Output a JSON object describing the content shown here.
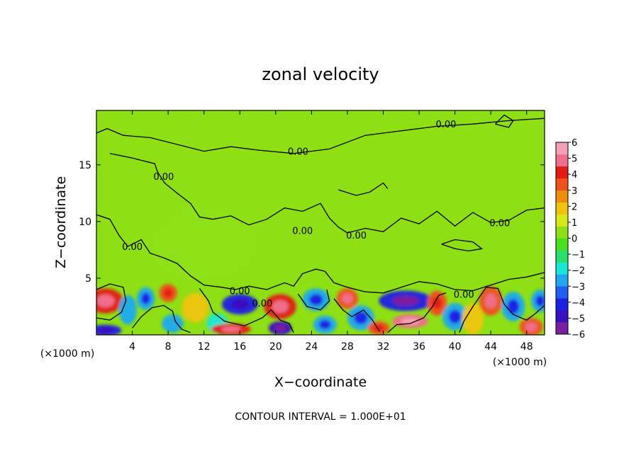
{
  "chart_data": {
    "type": "heatmap",
    "title": "zonal velocity",
    "xlabel": "X−coordinate",
    "ylabel": "Z−coordinate",
    "x_unit_left": "(×1000 m)",
    "x_unit_right": "(×1000 m)",
    "xlim": [
      0,
      50
    ],
    "ylim": [
      0,
      19.8
    ],
    "x_ticks": [
      4,
      8,
      12,
      16,
      20,
      24,
      28,
      32,
      36,
      40,
      44,
      48
    ],
    "y_ticks": [
      5,
      10,
      15
    ],
    "contour_interval_text": "CONTOUR INTERVAL = 1.000E+01",
    "contour_label": "0.00",
    "contour_label_positions": [
      [
        39,
        18.6
      ],
      [
        22.5,
        16.2
      ],
      [
        7.5,
        14
      ],
      [
        4,
        7.8
      ],
      [
        23,
        9.2
      ],
      [
        29,
        8.8
      ],
      [
        45,
        9.9
      ],
      [
        16,
        3.9
      ],
      [
        18.5,
        2.8
      ],
      [
        41,
        3.6
      ]
    ],
    "colorbar": {
      "min": -6,
      "max": 6,
      "tick_labels": [
        "6",
        "5",
        "4",
        "3",
        "2",
        "1",
        "0",
        "−1",
        "−2",
        "−3",
        "−4",
        "−5",
        "−6"
      ],
      "colors": [
        "#7a1fa2",
        "#3a0fc0",
        "#1a20e6",
        "#1e5ef0",
        "#1ea8f0",
        "#17e8d6",
        "#26e06a",
        "#46e01e",
        "#8ee014",
        "#d8e814",
        "#f0c40c",
        "#f08c0c",
        "#f0501a",
        "#e41a14",
        "#f06e8c",
        "#f4a0b4"
      ]
    },
    "background_value": 0.1,
    "blobs": [
      {
        "x": 1,
        "z": 3,
        "rx": 2.0,
        "rz": 1.1,
        "v": 4
      },
      {
        "x": 1,
        "z": 0.4,
        "rx": 1.8,
        "rz": 0.5,
        "v": -4
      },
      {
        "x": 3.5,
        "z": 2.2,
        "rx": 1.0,
        "rz": 1.3,
        "v": -2.5
      },
      {
        "x": 5.5,
        "z": 3.2,
        "rx": 1.0,
        "rz": 1.0,
        "v": -3
      },
      {
        "x": 8,
        "z": 3.7,
        "rx": 1.0,
        "rz": 0.8,
        "v": 3
      },
      {
        "x": 8.5,
        "z": 1.0,
        "rx": 1.2,
        "rz": 0.8,
        "v": -2.5
      },
      {
        "x": 11,
        "z": 2.4,
        "rx": 1.5,
        "rz": 1.3,
        "v": 2
      },
      {
        "x": 13.5,
        "z": 1.0,
        "rx": 1.2,
        "rz": 0.9,
        "v": -2
      },
      {
        "x": 16,
        "z": 2.7,
        "rx": 2.0,
        "rz": 0.9,
        "v": -4
      },
      {
        "x": 15,
        "z": 0.5,
        "rx": 2.2,
        "rz": 0.5,
        "v": 4
      },
      {
        "x": 20.5,
        "z": 2.5,
        "rx": 1.8,
        "rz": 1.1,
        "v": 4
      },
      {
        "x": 20.5,
        "z": 0.6,
        "rx": 1.3,
        "rz": 0.6,
        "v": -5
      },
      {
        "x": 24.5,
        "z": 3.1,
        "rx": 1.5,
        "rz": 1.0,
        "v": -3
      },
      {
        "x": 25.5,
        "z": 0.9,
        "rx": 1.3,
        "rz": 0.8,
        "v": -3
      },
      {
        "x": 28,
        "z": 3.2,
        "rx": 1.2,
        "rz": 0.9,
        "v": 3.5
      },
      {
        "x": 29.5,
        "z": 1.5,
        "rx": 1.5,
        "rz": 1.1,
        "v": -3
      },
      {
        "x": 31.5,
        "z": 0.6,
        "rx": 1.2,
        "rz": 0.6,
        "v": 3
      },
      {
        "x": 34.5,
        "z": 3.0,
        "rx": 3.0,
        "rz": 0.9,
        "v": -4.5
      },
      {
        "x": 35,
        "z": 1.2,
        "rx": 2.0,
        "rz": 0.6,
        "v": 4.5
      },
      {
        "x": 38,
        "z": 2.8,
        "rx": 1.1,
        "rz": 1.1,
        "v": 3
      },
      {
        "x": 40,
        "z": 1.6,
        "rx": 1.4,
        "rz": 1.2,
        "v": -3
      },
      {
        "x": 42,
        "z": 1.4,
        "rx": 1.2,
        "rz": 1.4,
        "v": 2
      },
      {
        "x": 44,
        "z": 3.0,
        "rx": 1.3,
        "rz": 1.3,
        "v": 3.5
      },
      {
        "x": 46.5,
        "z": 2.5,
        "rx": 1.3,
        "rz": 1.3,
        "v": -3
      },
      {
        "x": 48.5,
        "z": 0.7,
        "rx": 1.3,
        "rz": 0.8,
        "v": 3.5
      },
      {
        "x": 49.5,
        "z": 3.0,
        "rx": 1.0,
        "rz": 1.0,
        "v": -3
      },
      {
        "x": 12,
        "z": 8,
        "rx": 6.0,
        "rz": 3.5,
        "v": 0.5
      }
    ],
    "contours": [
      [
        [
          0,
          17.8
        ],
        [
          1.2,
          18.2
        ],
        [
          3,
          17.6
        ],
        [
          6,
          17.4
        ],
        [
          9,
          16.8
        ],
        [
          12,
          16.2
        ],
        [
          15,
          16.6
        ],
        [
          18,
          16.3
        ],
        [
          22,
          16.0
        ],
        [
          26,
          16.4
        ],
        [
          30,
          17.6
        ],
        [
          34,
          18.0
        ],
        [
          38,
          18.4
        ],
        [
          42,
          18.6
        ],
        [
          46,
          18.9
        ],
        [
          50,
          19.1
        ]
      ],
      [
        [
          1.5,
          16.0
        ],
        [
          4,
          15.6
        ],
        [
          6.5,
          15.1
        ],
        [
          6.8,
          14.4
        ],
        [
          7.6,
          13.4
        ],
        [
          9,
          12.5
        ],
        [
          10.5,
          11.6
        ],
        [
          11.5,
          10.4
        ],
        [
          13,
          10.2
        ],
        [
          15,
          10.5
        ],
        [
          17,
          9.7
        ],
        [
          19,
          10.2
        ],
        [
          21,
          11.2
        ],
        [
          23,
          10.9
        ],
        [
          25,
          11.6
        ],
        [
          26,
          10.3
        ],
        [
          27,
          9.5
        ],
        [
          28,
          9.0
        ],
        [
          30,
          9.4
        ],
        [
          32,
          9.1
        ],
        [
          34,
          10.3
        ],
        [
          36,
          9.8
        ],
        [
          38,
          10.9
        ],
        [
          40,
          9.6
        ],
        [
          42,
          10.8
        ],
        [
          44,
          9.9
        ],
        [
          46,
          10.1
        ],
        [
          48,
          11.0
        ],
        [
          50,
          11.2
        ]
      ],
      [
        [
          0,
          10.6
        ],
        [
          1.5,
          10.2
        ],
        [
          2.5,
          8.8
        ],
        [
          3.5,
          7.8
        ],
        [
          5,
          8.4
        ],
        [
          6,
          7.2
        ],
        [
          7.5,
          6.8
        ],
        [
          9,
          6.3
        ],
        [
          10.5,
          5.2
        ],
        [
          12,
          4.4
        ],
        [
          14,
          4.2
        ],
        [
          15.5,
          4.0
        ],
        [
          17,
          4.3
        ],
        [
          19,
          4.0
        ],
        [
          21,
          4.6
        ],
        [
          22,
          4.3
        ],
        [
          23,
          5.4
        ],
        [
          24.5,
          5.8
        ],
        [
          25.5,
          5.6
        ],
        [
          26.5,
          4.6
        ],
        [
          28,
          4.2
        ],
        [
          30,
          3.8
        ],
        [
          32,
          3.7
        ],
        [
          34,
          4.2
        ],
        [
          36,
          4.7
        ],
        [
          38,
          4.5
        ],
        [
          40,
          4.0
        ],
        [
          42,
          3.9
        ],
        [
          44,
          4.4
        ],
        [
          46,
          4.9
        ],
        [
          48,
          5.1
        ],
        [
          50,
          5.5
        ]
      ],
      [
        [
          27,
          12.8
        ],
        [
          29,
          12.3
        ],
        [
          30.5,
          12.6
        ],
        [
          32,
          13.4
        ],
        [
          32.5,
          12.9
        ]
      ],
      [
        [
          44.5,
          18.6
        ],
        [
          45.5,
          19.4
        ],
        [
          46.5,
          18.9
        ],
        [
          46,
          18.3
        ],
        [
          44.5,
          18.6
        ]
      ],
      [
        [
          38.5,
          8.0
        ],
        [
          40,
          7.6
        ],
        [
          41.5,
          7.4
        ],
        [
          43,
          7.6
        ],
        [
          42,
          8.2
        ],
        [
          40,
          8.4
        ],
        [
          38.5,
          8.0
        ]
      ],
      [
        [
          0,
          4.0
        ],
        [
          1.5,
          4.5
        ],
        [
          3,
          4.2
        ],
        [
          3.3,
          3.0
        ],
        [
          2.8,
          2.0
        ],
        [
          1.5,
          1.3
        ],
        [
          0,
          1.5
        ]
      ],
      [
        [
          4,
          0.6
        ],
        [
          5,
          1.6
        ],
        [
          6.2,
          2.4
        ],
        [
          7.5,
          2.6
        ],
        [
          8.5,
          2.1
        ],
        [
          8.8,
          1.2
        ],
        [
          9.5,
          0.5
        ],
        [
          10.5,
          0.2
        ]
      ],
      [
        [
          11.5,
          4.1
        ],
        [
          12.5,
          3.0
        ],
        [
          13,
          2.0
        ],
        [
          14.3,
          1.2
        ],
        [
          16.5,
          0.8
        ],
        [
          18.5,
          1.5
        ],
        [
          19.5,
          2.2
        ],
        [
          20.5,
          1.3
        ],
        [
          21.5,
          1.0
        ],
        [
          22,
          0.2
        ]
      ],
      [
        [
          22.5,
          3.6
        ],
        [
          23.5,
          2.5
        ],
        [
          25,
          2.2
        ],
        [
          26,
          3.0
        ],
        [
          25.7,
          4.0
        ]
      ],
      [
        [
          26.5,
          3.2
        ],
        [
          27.5,
          2.2
        ],
        [
          28.5,
          1.6
        ],
        [
          29.8,
          2.2
        ],
        [
          30.8,
          1.3
        ],
        [
          31.6,
          0.3
        ]
      ],
      [
        [
          32.5,
          0.2
        ],
        [
          33.5,
          0.9
        ],
        [
          35,
          1.0
        ],
        [
          36.5,
          1.5
        ],
        [
          37.5,
          2.5
        ],
        [
          38.2,
          3.5
        ],
        [
          39,
          3.7
        ]
      ],
      [
        [
          40.5,
          0.2
        ],
        [
          41,
          1.2
        ],
        [
          42,
          2.5
        ],
        [
          43.5,
          4.2
        ],
        [
          44.8,
          4.1
        ],
        [
          45.5,
          2.7
        ],
        [
          46.5,
          1.8
        ],
        [
          48,
          1.3
        ],
        [
          49,
          1.9
        ],
        [
          50,
          2.6
        ]
      ]
    ]
  }
}
